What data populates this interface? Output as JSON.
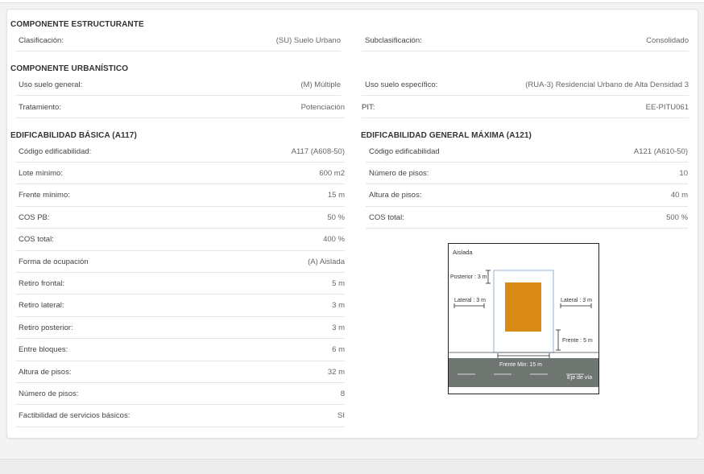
{
  "estructurante": {
    "title": "COMPONENTE ESTRUCTURANTE",
    "clasificacion": {
      "label": "Clasificación:",
      "value": "(SU) Suelo Urbano"
    },
    "subclasificacion": {
      "label": "Subclasificación:",
      "value": "Consolidado"
    }
  },
  "urbanistico": {
    "title": "COMPONENTE URBANÍSTICO",
    "uso_general": {
      "label": "Uso suelo general:",
      "value": "(M) Múltiple"
    },
    "uso_especifico": {
      "label": "Uso suelo específico:",
      "value": "(RUA-3) Residencial Urbano de Alta Densidad 3"
    },
    "tratamiento": {
      "label": "Tratamiento:",
      "value": "Potenciación"
    },
    "pit": {
      "label": "PIT:",
      "value": "EE-PITU061"
    }
  },
  "basica": {
    "title": "EDIFICABILIDAD BÁSICA (A117)",
    "rows": [
      {
        "label": "Código edificabilidad:",
        "value": "A117 (A608-50)"
      },
      {
        "label": "Lote mínimo:",
        "value": "600 m2"
      },
      {
        "label": "Frente mínimo:",
        "value": "15 m"
      },
      {
        "label": "COS PB:",
        "value": "50 %"
      },
      {
        "label": "COS total:",
        "value": "400 %"
      },
      {
        "label": "Forma de ocupación",
        "value": "(A) Aislada"
      },
      {
        "label": "Retiro frontal:",
        "value": "5 m"
      },
      {
        "label": "Retiro lateral:",
        "value": "3 m"
      },
      {
        "label": "Retiro posterior:",
        "value": "3 m"
      },
      {
        "label": "Entre bloques:",
        "value": "6 m"
      },
      {
        "label": "Altura de pisos:",
        "value": "32 m"
      },
      {
        "label": "Número de pisos:",
        "value": "8"
      },
      {
        "label": "Factibilidad de servicios básicos:",
        "value": "SI"
      }
    ]
  },
  "maxima": {
    "title": "EDIFICABILIDAD GENERAL MÁXIMA (A121)",
    "rows": [
      {
        "label": "Código edificabilidad",
        "value": "A121 (A610-50)"
      },
      {
        "label": "Número de pisos:",
        "value": "10"
      },
      {
        "label": "Altura de pisos:",
        "value": "40 m"
      },
      {
        "label": "COS total:",
        "value": "500 %"
      }
    ]
  },
  "diagram": {
    "title": "Aislada",
    "posterior": "Posterior : 3 m",
    "lateral_left": "Lateral : 3 m",
    "lateral_right": "Lateral : 3 m",
    "frente": "Frente : 5 m",
    "frente_min": "Frente Min: 15 m",
    "eje": "Eje de vía",
    "colors": {
      "building": "#d98b16",
      "road": "#6f7571",
      "lot": "#7d9ec2"
    }
  }
}
